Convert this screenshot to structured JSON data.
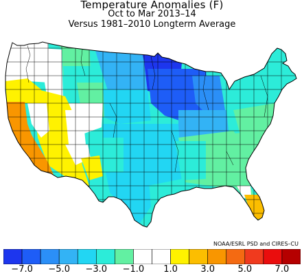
{
  "title": "Temperature Anomalies (F)",
  "subtitle": "Oct to Mar 2013–14",
  "subtitle2": "Versus 1981–2010 Longterm Average",
  "credit": "NOAA/ESRL PSD and CIRES–CU",
  "legend": {
    "colors": [
      "#1d36ee",
      "#1e5df7",
      "#2b8ff7",
      "#33b3f5",
      "#22d6f3",
      "#2cecd9",
      "#62f0a2",
      "#ffffff",
      "#ffffff",
      "#fff200",
      "#fcbe00",
      "#f99600",
      "#f46a12",
      "#f03a1e",
      "#ea0d0d",
      "#b50000"
    ],
    "tick_labels": [
      "−7.0",
      "−5.0",
      "−3.0",
      "−1.0",
      "1.0",
      "3.0",
      "5.0",
      "7.0"
    ]
  },
  "map_regions": [
    {
      "name": "pacific-northwest",
      "anomaly": "-1.0 to 1.0",
      "color": "#ffffff"
    },
    {
      "name": "california-coast",
      "anomaly": "3.0 to 5.0",
      "color": "#f99600"
    },
    {
      "name": "great-basin",
      "anomaly": "1.0 to 3.0",
      "color": "#fff200"
    },
    {
      "name": "northern-rockies",
      "anomaly": "-3.0 to -1.0",
      "color": "#62f0a2"
    },
    {
      "name": "northern-plains",
      "anomaly": "-5.0 to -3.0",
      "color": "#33b3f5"
    },
    {
      "name": "upper-midwest",
      "anomaly": "< -7.0",
      "color": "#1d36ee"
    },
    {
      "name": "great-lakes",
      "anomaly": "-7.0 to -5.0",
      "color": "#1e5df7"
    },
    {
      "name": "southern-plains",
      "anomaly": "-3.0 to -1.0",
      "color": "#22d6f3"
    },
    {
      "name": "southeast",
      "anomaly": "-1.0 to -3.0",
      "color": "#62f0a2"
    },
    {
      "name": "northeast",
      "anomaly": "-3.0 to -1.0",
      "color": "#2cecd9"
    },
    {
      "name": "south-florida",
      "anomaly": "1.0 to 3.0",
      "color": "#fcbe00"
    }
  ]
}
